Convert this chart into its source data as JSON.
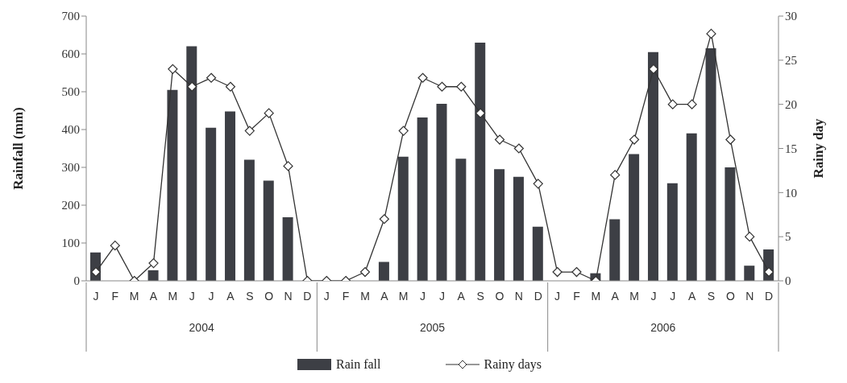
{
  "chart_data": {
    "type": "bar",
    "ylabel": "Rainfall (mm)",
    "y2label": "Rainy day",
    "categories": [
      "J",
      "F",
      "M",
      "A",
      "M",
      "J",
      "J",
      "A",
      "S",
      "O",
      "N",
      "D",
      "J",
      "F",
      "M",
      "A",
      "M",
      "J",
      "J",
      "A",
      "S",
      "O",
      "N",
      "D",
      "J",
      "F",
      "M",
      "A",
      "M",
      "J",
      "J",
      "A",
      "S",
      "O",
      "N",
      "D"
    ],
    "annotations": [
      "2004",
      "2005",
      "2006"
    ],
    "series": [
      {
        "name": "Rain fall",
        "color": "#3d3f45",
        "values": [
          75,
          0,
          0,
          28,
          505,
          620,
          405,
          448,
          320,
          265,
          168,
          0,
          0,
          0,
          0,
          50,
          328,
          432,
          468,
          323,
          630,
          295,
          275,
          143,
          0,
          0,
          20,
          163,
          335,
          605,
          258,
          390,
          615,
          300,
          40,
          83
        ]
      },
      {
        "name": "Rainy days",
        "type": "line",
        "axis": "y2",
        "color": "#333333",
        "marker": "diamond",
        "values": [
          1,
          4,
          0,
          2,
          24,
          22,
          23,
          22,
          17,
          19,
          13,
          0,
          0,
          0,
          1,
          7,
          17,
          23,
          22,
          22,
          19,
          16,
          15,
          11,
          1,
          1,
          0,
          12,
          16,
          24,
          20,
          20,
          28,
          16,
          5,
          1
        ]
      }
    ],
    "ylim": [
      0,
      700
    ],
    "yticks": [
      0,
      100,
      200,
      300,
      400,
      500,
      600,
      700
    ],
    "y2lim": [
      0,
      30
    ],
    "y2ticks": [
      0,
      5,
      10,
      15,
      20,
      25,
      30
    ],
    "grid": false,
    "legend": "bottom"
  }
}
